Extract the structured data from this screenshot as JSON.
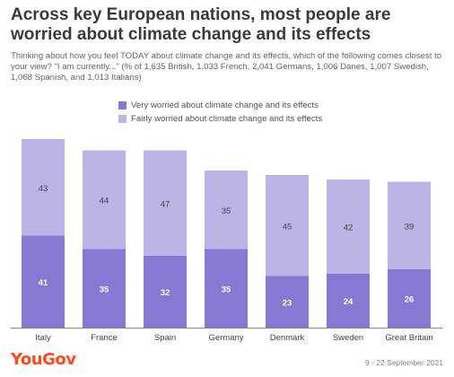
{
  "title": "Across key European nations, most people are worried about climate change and its effects",
  "subtitle": "Thinking about how you feel TODAY about climate change and its effects, which of the following comes closest to your view? \"I am currently...\" (% of 1,635 British, 1,033 French, 2,041 Germans, 1,006 Danes, 1,007 Swedish, 1,068 Spanish, and 1,013 Italians)",
  "brand": "YouGov",
  "footnote": "9 - 22 September 2021",
  "colors": {
    "very": "#8778d4",
    "fairly": "#bcb3e6",
    "axis": "#888888",
    "brand": "#ff4b1c"
  },
  "chart_data": {
    "type": "bar",
    "stacked": true,
    "categories": [
      "Italy",
      "France",
      "Spain",
      "Germany",
      "Denmark",
      "Sweden",
      "Great Britain"
    ],
    "series": [
      {
        "name": "Very worried about climate change and its effects",
        "values": [
          41,
          35,
          32,
          35,
          23,
          24,
          26
        ]
      },
      {
        "name": "Fairly worried about climate change and its effects",
        "values": [
          43,
          44,
          47,
          35,
          45,
          42,
          39
        ]
      }
    ],
    "ylim": [
      0,
      84
    ],
    "grid": false,
    "legend_position": "top-center"
  }
}
